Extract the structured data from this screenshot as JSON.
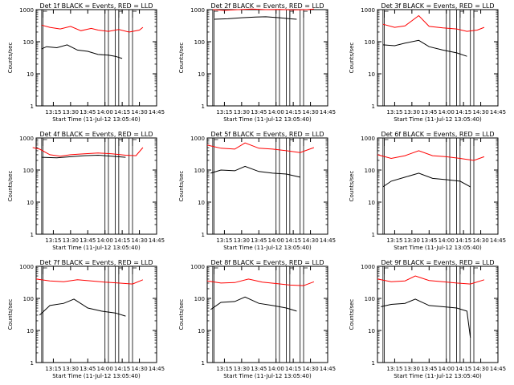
{
  "chart_data": [
    {
      "type": "line",
      "title": "Det 1f BLACK = Events, RED = LLD",
      "xlabel": "Start Time (11-Jul-12 13:05:40)",
      "ylabel": "Counts/sec",
      "xticks": [
        "13:15",
        "13:30",
        "13:45",
        "14:00",
        "14:15",
        "14:30",
        "14:45"
      ],
      "yticks": [
        "1",
        "10",
        "100",
        "1000"
      ],
      "ylim": [
        1,
        1000
      ],
      "yscale": "log",
      "series": [
        {
          "name": "LLD",
          "color": "#ff0000",
          "points": [
            [
              13.08,
              330
            ],
            [
              13.2,
              280
            ],
            [
              13.35,
              250
            ],
            [
              13.5,
              300
            ],
            [
              13.65,
              220
            ],
            [
              13.8,
              260
            ],
            [
              13.9,
              230
            ],
            [
              14.05,
              210
            ],
            [
              14.2,
              240
            ],
            [
              14.35,
              200
            ],
            [
              14.5,
              230
            ],
            [
              14.55,
              280
            ]
          ]
        },
        {
          "name": "Events",
          "color": "#000000",
          "points": [
            [
              13.08,
              60
            ],
            [
              13.15,
              70
            ],
            [
              13.3,
              65
            ],
            [
              13.45,
              80
            ],
            [
              13.6,
              55
            ],
            [
              13.75,
              50
            ],
            [
              13.9,
              40
            ],
            [
              14.05,
              38
            ],
            [
              14.15,
              35
            ],
            [
              14.25,
              30
            ]
          ]
        }
      ]
    },
    {
      "type": "line",
      "title": "Det 2f BLACK = Events, RED = LLD",
      "xlabel": "Start Time (11-Jul-12 13:05:40)",
      "ylabel": "Counts/sec",
      "xticks": [
        "13:15",
        "13:30",
        "13:45",
        "14:00",
        "14:15",
        "14:30",
        "14:45"
      ],
      "yticks": [
        "1",
        "10",
        "100",
        "1000"
      ],
      "ylim": [
        1,
        1000
      ],
      "yscale": "log",
      "series": [
        {
          "name": "LLD",
          "color": "#ff0000",
          "points": [
            [
              13.08,
              1000
            ],
            [
              13.25,
              950
            ],
            [
              13.45,
              1000
            ],
            [
              13.65,
              1050
            ],
            [
              13.85,
              1000
            ],
            [
              14.05,
              1020
            ],
            [
              14.25,
              980
            ],
            [
              14.45,
              1000
            ],
            [
              14.55,
              1050
            ]
          ]
        },
        {
          "name": "Events",
          "color": "#000000",
          "points": [
            [
              13.1,
              500
            ],
            [
              13.3,
              520
            ],
            [
              13.5,
              560
            ],
            [
              13.7,
              590
            ],
            [
              13.85,
              600
            ],
            [
              14.05,
              560
            ],
            [
              14.2,
              520
            ],
            [
              14.3,
              500
            ]
          ]
        }
      ]
    },
    {
      "type": "line",
      "title": "Det 3f BLACK = Events, RED = LLD",
      "xlabel": "Start Time (11-Jul-12 13:05:40)",
      "ylabel": "Counts/sec",
      "xticks": [
        "13:15",
        "13:30",
        "13:45",
        "14:00",
        "14:15",
        "14:30",
        "14:45"
      ],
      "yticks": [
        "1",
        "10",
        "100",
        "1000"
      ],
      "ylim": [
        1,
        1000
      ],
      "yscale": "log",
      "series": [
        {
          "name": "LLD",
          "color": "#ff0000",
          "points": [
            [
              13.08,
              350
            ],
            [
              13.25,
              280
            ],
            [
              13.4,
              310
            ],
            [
              13.6,
              650
            ],
            [
              13.75,
              300
            ],
            [
              13.95,
              270
            ],
            [
              14.15,
              250
            ],
            [
              14.3,
              210
            ],
            [
              14.45,
              230
            ],
            [
              14.55,
              280
            ]
          ]
        },
        {
          "name": "Events",
          "color": "#000000",
          "points": [
            [
              13.08,
              80
            ],
            [
              13.25,
              75
            ],
            [
              13.4,
              90
            ],
            [
              13.6,
              110
            ],
            [
              13.75,
              70
            ],
            [
              13.95,
              55
            ],
            [
              14.15,
              45
            ],
            [
              14.3,
              35
            ]
          ]
        }
      ]
    },
    {
      "type": "line",
      "title": "Det 4f BLACK = Events, RED = LLD",
      "xlabel": "Start Time (11-Jul-12 13:05:40)",
      "ylabel": "Counts/sec",
      "xticks": [
        "13:15",
        "13:30",
        "13:45",
        "14:00",
        "14:15",
        "14:30",
        "14:45"
      ],
      "yticks": [
        "1",
        "10",
        "100",
        "1000"
      ],
      "ylim": [
        1,
        1000
      ],
      "yscale": "log",
      "series": [
        {
          "name": "LLD",
          "color": "#ff0000",
          "points": [
            [
              12.95,
              500
            ],
            [
              13.05,
              450
            ],
            [
              13.2,
              300
            ],
            [
              13.35,
              270
            ],
            [
              13.5,
              300
            ],
            [
              13.7,
              320
            ],
            [
              13.9,
              340
            ],
            [
              14.1,
              320
            ],
            [
              14.3,
              290
            ],
            [
              14.45,
              280
            ],
            [
              14.55,
              500
            ]
          ]
        },
        {
          "name": "Events",
          "color": "#000000",
          "points": [
            [
              13.08,
              250
            ],
            [
              13.3,
              240
            ],
            [
              13.5,
              260
            ],
            [
              13.7,
              280
            ],
            [
              13.9,
              290
            ],
            [
              14.1,
              270
            ],
            [
              14.3,
              250
            ]
          ]
        }
      ]
    },
    {
      "type": "line",
      "title": "Det 5f BLACK = Events, RED = LLD",
      "xlabel": "Start Time (11-Jul-12 13:05:40)",
      "ylabel": "Counts/sec",
      "xticks": [
        "13:15",
        "13:30",
        "13:45",
        "14:00",
        "14:15",
        "14:30",
        "14:45"
      ],
      "yticks": [
        "1",
        "10",
        "100",
        "1000"
      ],
      "ylim": [
        1,
        1000
      ],
      "yscale": "log",
      "series": [
        {
          "name": "LLD",
          "color": "#ff0000",
          "points": [
            [
              13.0,
              600
            ],
            [
              13.2,
              480
            ],
            [
              13.4,
              450
            ],
            [
              13.55,
              700
            ],
            [
              13.75,
              480
            ],
            [
              13.95,
              450
            ],
            [
              14.15,
              400
            ],
            [
              14.35,
              350
            ],
            [
              14.55,
              500
            ]
          ]
        },
        {
          "name": "Events",
          "color": "#000000",
          "points": [
            [
              13.05,
              80
            ],
            [
              13.2,
              100
            ],
            [
              13.4,
              95
            ],
            [
              13.55,
              130
            ],
            [
              13.75,
              90
            ],
            [
              13.95,
              80
            ],
            [
              14.15,
              75
            ],
            [
              14.35,
              60
            ]
          ]
        }
      ]
    },
    {
      "type": "line",
      "title": "Det 6f BLACK = Events, RED = LLD",
      "xlabel": "Start Time (11-Jul-12 13:05:40)",
      "ylabel": "Counts/sec",
      "xticks": [
        "13:15",
        "13:30",
        "13:45",
        "14:00",
        "14:15",
        "14:30",
        "14:45"
      ],
      "yticks": [
        "1",
        "10",
        "100",
        "1000"
      ],
      "ylim": [
        1,
        1000
      ],
      "yscale": "log",
      "series": [
        {
          "name": "LLD",
          "color": "#ff0000",
          "points": [
            [
              13.0,
              300
            ],
            [
              13.2,
              230
            ],
            [
              13.4,
              280
            ],
            [
              13.6,
              400
            ],
            [
              13.8,
              280
            ],
            [
              14.0,
              260
            ],
            [
              14.2,
              230
            ],
            [
              14.4,
              200
            ],
            [
              14.55,
              260
            ]
          ]
        },
        {
          "name": "Events",
          "color": "#000000",
          "points": [
            [
              13.08,
              30
            ],
            [
              13.2,
              45
            ],
            [
              13.4,
              60
            ],
            [
              13.6,
              80
            ],
            [
              13.8,
              55
            ],
            [
              14.0,
              50
            ],
            [
              14.2,
              45
            ],
            [
              14.35,
              30
            ]
          ]
        }
      ]
    },
    {
      "type": "line",
      "title": "Det 7f BLACK = Events, RED = LLD",
      "xlabel": "Start Time (11-Jul-12 13:05:40)",
      "ylabel": "Counts/sec",
      "xticks": [
        "13:15",
        "13:30",
        "13:45",
        "14:00",
        "14:15",
        "14:30",
        "14:45"
      ],
      "yticks": [
        "1",
        "10",
        "100",
        "1000"
      ],
      "ylim": [
        1,
        1000
      ],
      "yscale": "log",
      "series": [
        {
          "name": "LLD",
          "color": "#ff0000",
          "points": [
            [
              13.0,
              400
            ],
            [
              13.2,
              350
            ],
            [
              13.4,
              330
            ],
            [
              13.6,
              380
            ],
            [
              13.8,
              350
            ],
            [
              14.0,
              320
            ],
            [
              14.2,
              300
            ],
            [
              14.4,
              280
            ],
            [
              14.55,
              380
            ]
          ]
        },
        {
          "name": "Events",
          "color": "#000000",
          "points": [
            [
              13.05,
              30
            ],
            [
              13.2,
              60
            ],
            [
              13.4,
              70
            ],
            [
              13.55,
              95
            ],
            [
              13.75,
              50
            ],
            [
              13.95,
              40
            ],
            [
              14.15,
              35
            ],
            [
              14.3,
              28
            ]
          ]
        }
      ]
    },
    {
      "type": "line",
      "title": "Det 8f BLACK = Events, RED = LLD",
      "xlabel": "Start Time (11-Jul-12 13:05:40)",
      "ylabel": "Counts/sec",
      "xticks": [
        "13:15",
        "13:30",
        "13:45",
        "14:00",
        "14:15",
        "14:30",
        "14:45"
      ],
      "yticks": [
        "1",
        "10",
        "100",
        "1000"
      ],
      "ylim": [
        1,
        1000
      ],
      "yscale": "log",
      "series": [
        {
          "name": "LLD",
          "color": "#ff0000",
          "points": [
            [
              13.0,
              350
            ],
            [
              13.2,
              300
            ],
            [
              13.4,
              310
            ],
            [
              13.6,
              400
            ],
            [
              13.8,
              320
            ],
            [
              14.0,
              290
            ],
            [
              14.2,
              260
            ],
            [
              14.4,
              250
            ],
            [
              14.55,
              330
            ]
          ]
        },
        {
          "name": "Events",
          "color": "#000000",
          "points": [
            [
              13.05,
              45
            ],
            [
              13.2,
              75
            ],
            [
              13.4,
              80
            ],
            [
              13.55,
              110
            ],
            [
              13.75,
              70
            ],
            [
              13.95,
              60
            ],
            [
              14.15,
              50
            ],
            [
              14.3,
              40
            ]
          ]
        }
      ]
    },
    {
      "type": "line",
      "title": "Det 9f BLACK = Events, RED = LLD",
      "xlabel": "Start Time (11-Jul-12 13:05:40)",
      "ylabel": "Counts/sec",
      "xticks": [
        "13:15",
        "13:30",
        "13:45",
        "14:00",
        "14:15",
        "14:30",
        "14:45"
      ],
      "yticks": [
        "1",
        "10",
        "100",
        "1000"
      ],
      "ylim": [
        1,
        1000
      ],
      "yscale": "log",
      "series": [
        {
          "name": "LLD",
          "color": "#ff0000",
          "points": [
            [
              13.0,
              400
            ],
            [
              13.2,
              330
            ],
            [
              13.4,
              350
            ],
            [
              13.55,
              500
            ],
            [
              13.75,
              360
            ],
            [
              13.95,
              330
            ],
            [
              14.15,
              300
            ],
            [
              14.35,
              280
            ],
            [
              14.55,
              380
            ]
          ]
        },
        {
          "name": "Events",
          "color": "#000000",
          "points": [
            [
              13.05,
              55
            ],
            [
              13.2,
              65
            ],
            [
              13.4,
              70
            ],
            [
              13.55,
              95
            ],
            [
              13.75,
              60
            ],
            [
              13.95,
              55
            ],
            [
              14.15,
              50
            ],
            [
              14.3,
              40
            ],
            [
              14.35,
              6
            ]
          ]
        }
      ]
    }
  ]
}
